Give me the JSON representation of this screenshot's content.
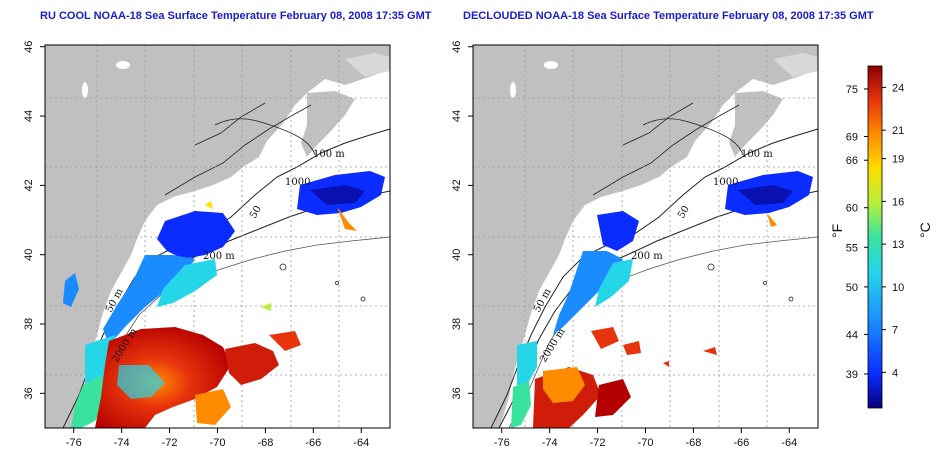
{
  "panels": [
    {
      "id": "left",
      "title": "RU COOL NOAA-18 Sea Surface Temperature February 08, 2008 17:35 GMT",
      "contour_labels": [
        "100 m",
        "200 m",
        "50 m",
        "2000 m",
        "50",
        "1000"
      ]
    },
    {
      "id": "right",
      "title": "DECLOUDED NOAA-18 Sea Surface Temperature February 08, 2008 17:35 GMT",
      "contour_labels": [
        "100 m",
        "200 m",
        "50 m",
        "2000 m",
        "50",
        "1000"
      ]
    }
  ],
  "axes": {
    "lon_ticks": [
      "-76",
      "-74",
      "-72",
      "-70",
      "-68",
      "-66",
      "-64"
    ],
    "lat_ticks": [
      "36",
      "38",
      "40",
      "42",
      "44",
      "46"
    ]
  },
  "colorbar": {
    "f_unit": "°F",
    "c_unit": "°C",
    "f_ticks": [
      "75",
      "69",
      "66",
      "60",
      "55",
      "50",
      "44",
      "39"
    ],
    "c_ticks": [
      "24",
      "21",
      "19",
      "16",
      "13",
      "10",
      "7",
      "4"
    ],
    "colors": [
      "#08007f",
      "#0a2cff",
      "#1a8cff",
      "#25d6e8",
      "#39e39e",
      "#b8f03a",
      "#ffdd00",
      "#ff8c00",
      "#e8340c",
      "#8b0000"
    ]
  }
}
